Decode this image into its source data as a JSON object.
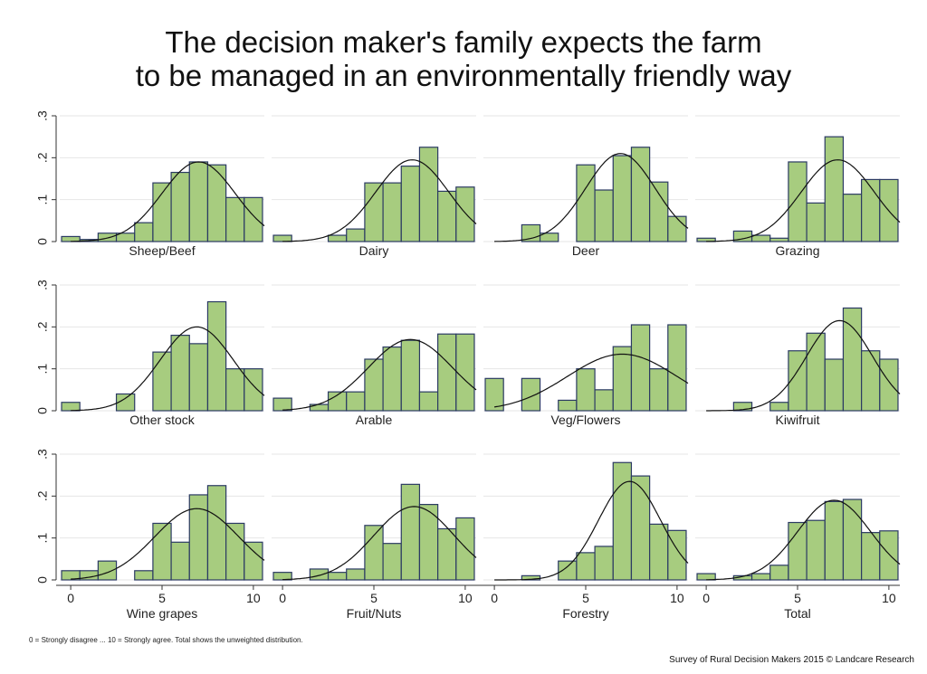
{
  "title_lines": [
    "The decision maker's family expects the farm",
    "to be managed in an environmentally friendly way"
  ],
  "footnote": "0 = Strongly disagree ... 10 = Strongly agree. Total shows the unweighted distribution.",
  "credit": "Survey of Rural Decision Makers 2015 © Landcare Research",
  "colors": {
    "bar_fill": "#a7cc7f",
    "bar_stroke": "#2b3a63",
    "curve": "#111111",
    "gridline": "#e6e6e6",
    "axis": "#333333"
  },
  "chart_data": {
    "type": "bar",
    "layout": "3x4 panel histograms with fitted normal density curves",
    "bins": [
      0,
      1,
      2,
      3,
      4,
      5,
      6,
      7,
      8,
      9,
      10
    ],
    "ylim": [
      0,
      0.3
    ],
    "yticks": [
      0,
      0.1,
      0.2,
      0.3
    ],
    "ytick_labels": [
      "0",
      ".1",
      ".2",
      ".3"
    ],
    "xlim": [
      -0.6,
      10.6
    ],
    "xticks": [
      0,
      5,
      10
    ],
    "xtick_labels": [
      "0",
      "5",
      "10"
    ],
    "grid": true,
    "panels": [
      {
        "name": "Sheep/Beef",
        "values": [
          0.012,
          0.005,
          0.02,
          0.02,
          0.045,
          0.14,
          0.165,
          0.19,
          0.183,
          0.105,
          0.105
        ],
        "mean": 7.0,
        "sd": 2.0,
        "peak": 0.19
      },
      {
        "name": "Dairy",
        "values": [
          0.015,
          0,
          0,
          0.015,
          0.03,
          0.14,
          0.14,
          0.18,
          0.225,
          0.12,
          0.13
        ],
        "mean": 7.1,
        "sd": 2.0,
        "peak": 0.195
      },
      {
        "name": "Deer",
        "values": [
          0,
          0,
          0.04,
          0.02,
          0,
          0.183,
          0.123,
          0.205,
          0.225,
          0.142,
          0.06
        ],
        "mean": 6.9,
        "sd": 1.9,
        "peak": 0.21
      },
      {
        "name": "Grazing",
        "values": [
          0.008,
          0,
          0.025,
          0.015,
          0.008,
          0.19,
          0.092,
          0.25,
          0.113,
          0.148,
          0.148
        ],
        "mean": 7.2,
        "sd": 2.0,
        "peak": 0.195
      },
      {
        "name": "Other stock",
        "values": [
          0.02,
          0,
          0,
          0.04,
          0,
          0.14,
          0.18,
          0.16,
          0.26,
          0.1,
          0.1
        ],
        "mean": 6.9,
        "sd": 2.0,
        "peak": 0.2
      },
      {
        "name": "Arable",
        "values": [
          0.03,
          0,
          0.015,
          0.045,
          0.045,
          0.123,
          0.152,
          0.168,
          0.045,
          0.183,
          0.183
        ],
        "mean": 7.0,
        "sd": 2.3,
        "peak": 0.17
      },
      {
        "name": "Veg/Flowers",
        "values": [
          0.077,
          0,
          0.077,
          0,
          0.025,
          0.1,
          0.05,
          0.153,
          0.205,
          0.1,
          0.205
        ],
        "mean": 7.0,
        "sd": 3.0,
        "peak": 0.135
      },
      {
        "name": "Kiwifruit",
        "values": [
          0,
          0,
          0.02,
          0,
          0.02,
          0.143,
          0.185,
          0.123,
          0.245,
          0.143,
          0.123
        ],
        "mean": 7.3,
        "sd": 1.8,
        "peak": 0.215
      },
      {
        "name": "Wine grapes",
        "values": [
          0.022,
          0.022,
          0.045,
          0,
          0.022,
          0.135,
          0.09,
          0.203,
          0.225,
          0.135,
          0.09
        ],
        "mean": 6.9,
        "sd": 2.3,
        "peak": 0.17
      },
      {
        "name": "Fruit/Nuts",
        "values": [
          0.018,
          0,
          0.026,
          0.018,
          0.026,
          0.13,
          0.087,
          0.228,
          0.18,
          0.122,
          0.148
        ],
        "mean": 7.2,
        "sd": 2.2,
        "peak": 0.175
      },
      {
        "name": "Forestry",
        "values": [
          0,
          0,
          0.01,
          0,
          0.045,
          0.065,
          0.08,
          0.28,
          0.248,
          0.133,
          0.118
        ],
        "mean": 7.4,
        "sd": 1.7,
        "peak": 0.235
      },
      {
        "name": "Total",
        "values": [
          0.015,
          0,
          0.01,
          0.015,
          0.035,
          0.137,
          0.142,
          0.187,
          0.192,
          0.113,
          0.117
        ],
        "mean": 7.0,
        "sd": 2.0,
        "peak": 0.19
      }
    ]
  }
}
